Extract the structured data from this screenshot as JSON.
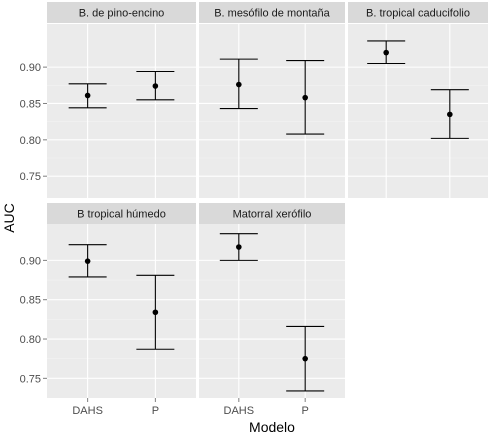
{
  "chart_data": {
    "type": "errorbar",
    "layout": "facet-wrap 3 columns",
    "xlabel": "Modelo",
    "ylabel": "AUC",
    "categories": [
      "DAHS",
      "P"
    ],
    "yticks": [
      0.75,
      0.8,
      0.85,
      0.9
    ],
    "ytick_labels": [
      "0.75",
      "0.80",
      "0.85",
      "0.90"
    ],
    "ylim_top_row": [
      0.72,
      0.96
    ],
    "ylim_bottom_row": [
      0.725,
      0.945
    ],
    "grid": true,
    "colors": {
      "panel_background": "#ebebeb",
      "strip_background": "#d9d9d9",
      "grid_major": "#ffffff",
      "grid_minor": "#f4f4f4",
      "marks": "#000000"
    },
    "panels": [
      {
        "title": "B. de pino-encino",
        "points": [
          {
            "x": "DAHS",
            "y": 0.861,
            "low": 0.844,
            "high": 0.877
          },
          {
            "x": "P",
            "y": 0.874,
            "low": 0.855,
            "high": 0.894
          }
        ]
      },
      {
        "title": "B. mesófilo de montaña",
        "points": [
          {
            "x": "DAHS",
            "y": 0.876,
            "low": 0.843,
            "high": 0.911
          },
          {
            "x": "P",
            "y": 0.858,
            "low": 0.808,
            "high": 0.909
          }
        ]
      },
      {
        "title": "B. tropical caducifolio",
        "points": [
          {
            "x": "DAHS",
            "y": 0.92,
            "low": 0.905,
            "high": 0.936
          },
          {
            "x": "P",
            "y": 0.835,
            "low": 0.802,
            "high": 0.869
          }
        ]
      },
      {
        "title": "B tropical húmedo",
        "points": [
          {
            "x": "DAHS",
            "y": 0.899,
            "low": 0.879,
            "high": 0.92
          },
          {
            "x": "P",
            "y": 0.834,
            "low": 0.787,
            "high": 0.881
          }
        ]
      },
      {
        "title": "Matorral xerófilo",
        "points": [
          {
            "x": "DAHS",
            "y": 0.917,
            "low": 0.9,
            "high": 0.934
          },
          {
            "x": "P",
            "y": 0.775,
            "low": 0.734,
            "high": 0.816
          }
        ]
      }
    ]
  }
}
